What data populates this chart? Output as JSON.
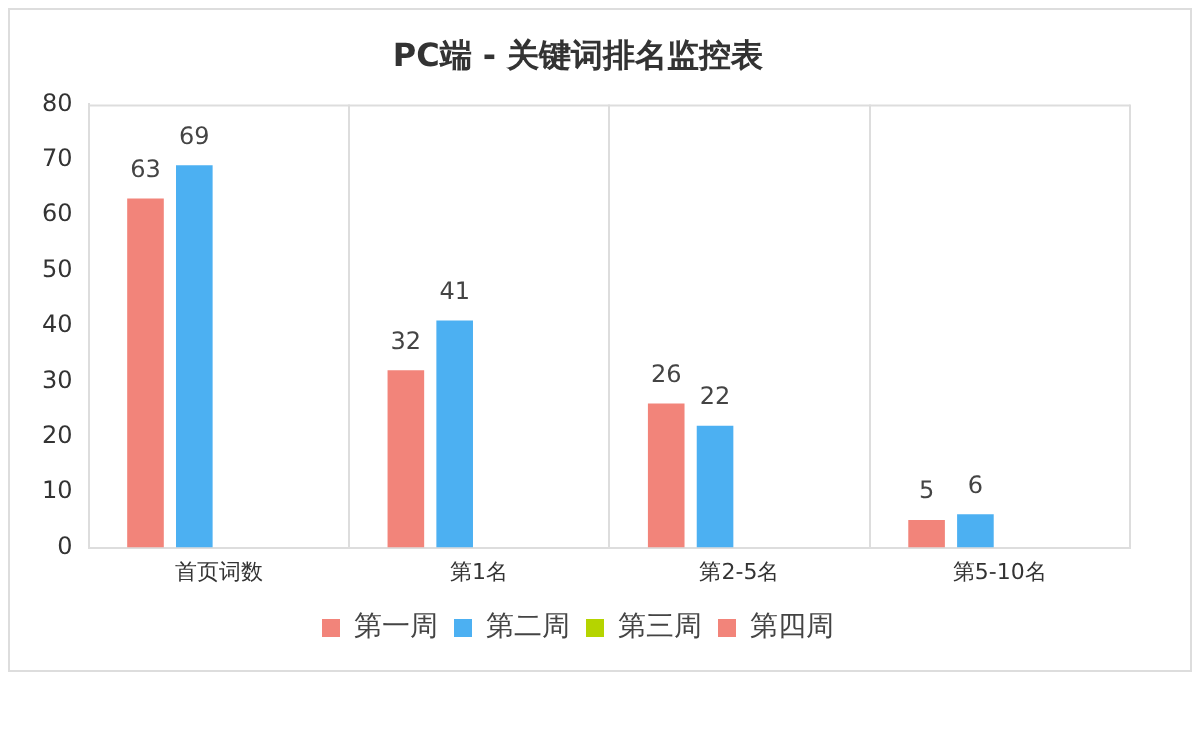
{
  "chart_data": {
    "type": "bar",
    "title": "PC端 - 关键词排名监控表",
    "categories": [
      "首页词数",
      "第1名",
      "第2-5名",
      "第5-10名"
    ],
    "series": [
      {
        "name": "第一周",
        "color": "#f2847a",
        "values": [
          63,
          32,
          26,
          5
        ]
      },
      {
        "name": "第二周",
        "color": "#4cb0f2",
        "values": [
          69,
          41,
          22,
          6
        ]
      },
      {
        "name": "第三周",
        "color": "#b5d400",
        "values": [
          null,
          null,
          null,
          null
        ]
      },
      {
        "name": "第四周",
        "color": "#f2847a",
        "values": [
          null,
          null,
          null,
          null
        ]
      }
    ],
    "ylim": [
      0,
      80
    ],
    "yticks": [
      0,
      10,
      20,
      30,
      40,
      50,
      60,
      70,
      80
    ],
    "grid": "x",
    "legend": "bottom",
    "data_labels": true
  }
}
